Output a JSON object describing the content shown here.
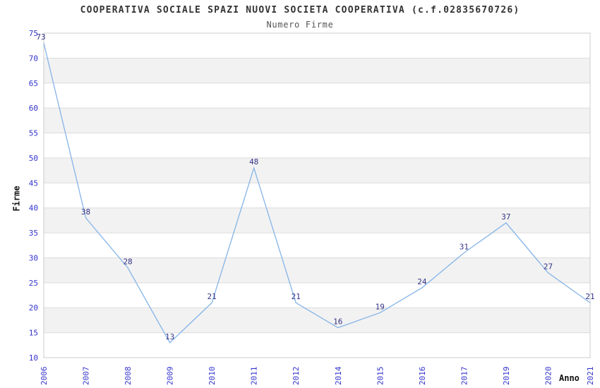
{
  "chart_data": {
    "type": "line",
    "title": "COOPERATIVA SOCIALE SPAZI NUOVI SOCIETA COOPERATIVA (c.f.02835670726)",
    "subtitle": "Numero Firme",
    "xlabel": "Anno",
    "ylabel": "Firme",
    "categories": [
      "2006",
      "2007",
      "2008",
      "2009",
      "2010",
      "2011",
      "2012",
      "2014",
      "2015",
      "2016",
      "2017",
      "2019",
      "2020",
      "2021"
    ],
    "values": [
      73,
      38,
      28,
      13,
      21,
      48,
      21,
      16,
      19,
      24,
      31,
      37,
      27,
      21
    ],
    "ylim": [
      10,
      75
    ],
    "ytick_step": 5,
    "grid": "horizontal-bands-alternating",
    "legend": "none",
    "point_labels_shown": true,
    "colors": {
      "line": "#85b4e8",
      "tick_label": "#3333cc",
      "point_label": "#333388",
      "band_gray": "#f2f2f2",
      "band_white": "#ffffff",
      "gridline": "#dcdcdc",
      "plot_border": "#cccccc",
      "title_text": "#333333",
      "subtitle_text": "#555555",
      "axis_title_text": "#111111"
    }
  }
}
